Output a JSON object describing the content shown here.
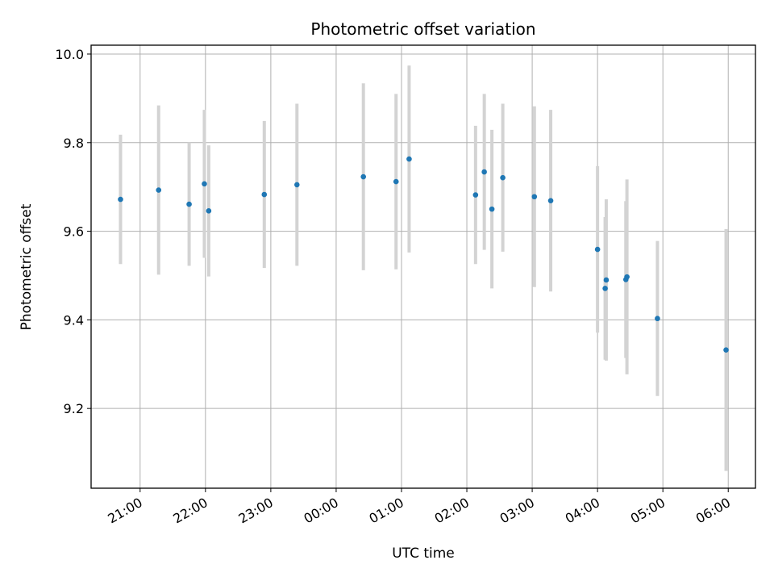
{
  "chart_data": {
    "type": "scatter",
    "title": "Photometric offset variation",
    "xlabel": "UTC time",
    "ylabel": "Photometric offset",
    "x_unit": "UTC time (start 20:00)",
    "xlim": [
      "20:15",
      "06:25"
    ],
    "ylim": [
      9.02,
      10.02
    ],
    "xticks": [
      "21:00",
      "22:00",
      "23:00",
      "00:00",
      "01:00",
      "02:00",
      "03:00",
      "04:00",
      "05:00",
      "06:00"
    ],
    "yticks": [
      9.2,
      9.4,
      9.6,
      9.8,
      10.0
    ],
    "ytick_labels": [
      "9.2",
      "9.4",
      "9.6",
      "9.8",
      "10.0"
    ],
    "grid": true,
    "point_color": "#1f77b4",
    "errorbar_color": "#d3d3d3",
    "points": [
      {
        "x": "20:42",
        "y": 9.672,
        "err": 0.146
      },
      {
        "x": "21:17",
        "y": 9.693,
        "err": 0.191
      },
      {
        "x": "21:45",
        "y": 9.661,
        "err": 0.139
      },
      {
        "x": "21:59",
        "y": 9.707,
        "err": 0.167
      },
      {
        "x": "22:03",
        "y": 9.646,
        "err": 0.148
      },
      {
        "x": "22:54",
        "y": 9.683,
        "err": 0.166
      },
      {
        "x": "23:24",
        "y": 9.705,
        "err": 0.183
      },
      {
        "x": "00:25",
        "y": 9.723,
        "err": 0.211
      },
      {
        "x": "00:55",
        "y": 9.712,
        "err": 0.198
      },
      {
        "x": "01:07",
        "y": 9.763,
        "err": 0.211
      },
      {
        "x": "02:08",
        "y": 9.682,
        "err": 0.156
      },
      {
        "x": "02:16",
        "y": 9.734,
        "err": 0.176
      },
      {
        "x": "02:23",
        "y": 9.65,
        "err": 0.179
      },
      {
        "x": "02:33",
        "y": 9.721,
        "err": 0.167
      },
      {
        "x": "03:02",
        "y": 9.678,
        "err": 0.204
      },
      {
        "x": "03:17",
        "y": 9.669,
        "err": 0.205
      },
      {
        "x": "04:00",
        "y": 9.559,
        "err": 0.188
      },
      {
        "x": "04:07",
        "y": 9.471,
        "err": 0.161
      },
      {
        "x": "04:08",
        "y": 9.49,
        "err": 0.182
      },
      {
        "x": "04:26",
        "y": 9.491,
        "err": 0.177
      },
      {
        "x": "04:27",
        "y": 9.497,
        "err": 0.22
      },
      {
        "x": "04:55",
        "y": 9.403,
        "err": 0.175
      },
      {
        "x": "05:58",
        "y": 9.332,
        "err": 0.273
      }
    ]
  }
}
